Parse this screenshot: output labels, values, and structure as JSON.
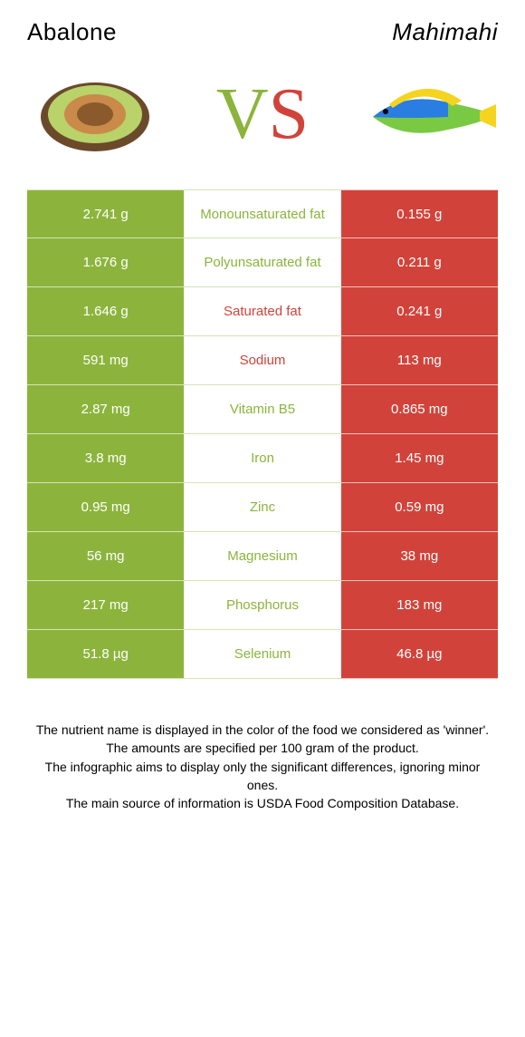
{
  "title_left": "Abalone",
  "title_right": "Mahimahi",
  "vs_text": {
    "left_letter": "V",
    "right_letter": "S"
  },
  "colors": {
    "left_bg": "#8cb43c",
    "left_border": "#d6e3b7",
    "mid_border": "#d6e3b7",
    "right_bg": "#d1433a",
    "right_border": "#f0c2bf",
    "winner_left": "#8cb43c",
    "winner_right": "#d1433a",
    "vs_left": "#8cb43c",
    "vs_right": "#d1433a",
    "title_text": "#000000",
    "footer_text": "#000000"
  },
  "rows": [
    {
      "nutrient": "Monounsaturated fat",
      "left_value": "2.741 g",
      "right_value": "0.155 g",
      "winner": "left"
    },
    {
      "nutrient": "Polyunsaturated fat",
      "left_value": "1.676 g",
      "right_value": "0.211 g",
      "winner": "left"
    },
    {
      "nutrient": "Saturated fat",
      "left_value": "1.646 g",
      "right_value": "0.241 g",
      "winner": "right"
    },
    {
      "nutrient": "Sodium",
      "left_value": "591 mg",
      "right_value": "113 mg",
      "winner": "right"
    },
    {
      "nutrient": "Vitamin B5",
      "left_value": "2.87 mg",
      "right_value": "0.865 mg",
      "winner": "left"
    },
    {
      "nutrient": "Iron",
      "left_value": "3.8 mg",
      "right_value": "1.45 mg",
      "winner": "left"
    },
    {
      "nutrient": "Zinc",
      "left_value": "0.95 mg",
      "right_value": "0.59 mg",
      "winner": "left"
    },
    {
      "nutrient": "Magnesium",
      "left_value": "56 mg",
      "right_value": "38 mg",
      "winner": "left"
    },
    {
      "nutrient": "Phosphorus",
      "left_value": "217 mg",
      "right_value": "183 mg",
      "winner": "left"
    },
    {
      "nutrient": "Selenium",
      "left_value": "51.8 µg",
      "right_value": "46.8 µg",
      "winner": "left"
    }
  ],
  "footer_lines": [
    "The nutrient name is displayed in the color of the food we considered as 'winner'.",
    "The amounts are specified per 100 gram of the product.",
    "The infographic aims to display only the significant differences, ignoring minor ones.",
    "The main source of information is USDA Food Composition Database."
  ]
}
